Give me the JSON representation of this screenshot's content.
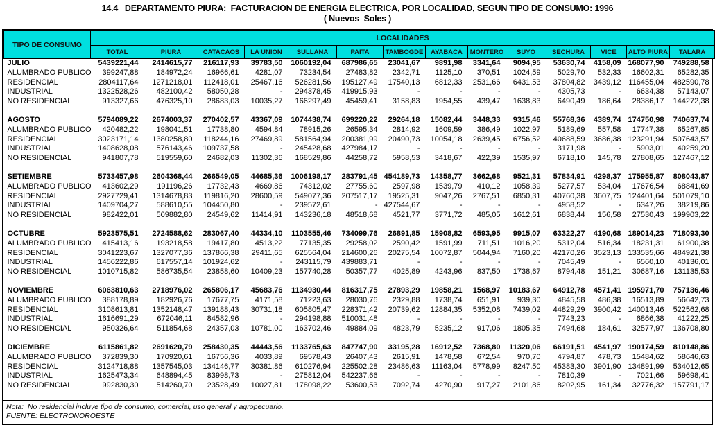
{
  "title": {
    "line1": "14.4   DEPARTAMENTO PIURA:  FACTURACION DE ENERGIA ELECTRICA, POR LOCALIDAD, SEGUN TIPO DE CONSUMO: 1996",
    "line2": "( Nuevos  Soles )"
  },
  "colors": {
    "header_bg": "#00DFDF",
    "header_text": "#111111"
  },
  "table": {
    "corner_header": "TIPO DE CONSUMO",
    "group_header": "LOCALIDADES",
    "columns": [
      "TOTAL",
      "PIURA",
      "CATACAOS",
      "LA UNION",
      "SULLANA",
      "PAITA",
      "TAMBOGDE",
      "AYABACA",
      "MONTERO",
      "SUYO",
      "SECHURA",
      "VICE",
      "ALTO PIURA",
      "TALARA"
    ],
    "months": [
      {
        "name": "JULIO",
        "totals": [
          "5439221,44",
          "2414615,77",
          "216117,93",
          "39783,50",
          "1060192,04",
          "687986,65",
          "23041,67",
          "9891,98",
          "3341,64",
          "9094,95",
          "53630,74",
          "4158,09",
          "168077,90",
          "749288,58"
        ],
        "categories": [
          {
            "label": "ALUMBRADO PUBLICO",
            "values": [
              "399247,88",
              "184972,24",
              "16966,61",
              "4281,07",
              "73234,54",
              "27483,82",
              "2342,71",
              "1125,10",
              "370,51",
              "1024,59",
              "5029,70",
              "532,33",
              "16602,31",
              "65282,35"
            ]
          },
          {
            "label": "RESIDENCIAL",
            "values": [
              "2804117,64",
              "1271218,01",
              "112418,01",
              "25467,16",
              "526281,56",
              "195127,49",
              "17540,13",
              "6812,33",
              "2531,66",
              "6431,53",
              "37804,82",
              "3439,12",
              "116455,04",
              "482590,78"
            ]
          },
          {
            "label": "INDUSTRIAL",
            "values": [
              "1322528,26",
              "482100,42",
              "58050,28",
              "-",
              "294378,45",
              "419915,93",
              "-",
              "-",
              "-",
              "-",
              "4305,73",
              "-",
              "6634,38",
              "57143,07"
            ]
          },
          {
            "label": "NO RESIDENCIAL",
            "values": [
              "913327,66",
              "476325,10",
              "28683,03",
              "10035,27",
              "166297,49",
              "45459,41",
              "3158,83",
              "1954,55",
              "439,47",
              "1638,83",
              "6490,49",
              "186,64",
              "28386,17",
              "144272,38"
            ]
          }
        ]
      },
      {
        "name": "AGOSTO",
        "totals": [
          "5794089,22",
          "2674003,37",
          "270402,57",
          "43367,09",
          "1074438,74",
          "699220,22",
          "29264,18",
          "15082,44",
          "3448,33",
          "9315,46",
          "55768,36",
          "4389,74",
          "174750,98",
          "740637,74"
        ],
        "categories": [
          {
            "label": "ALUMBRADO PUBLICO",
            "values": [
              "420482,22",
              "198041,51",
              "17738,80",
              "4594,84",
              "78915,26",
              "26595,34",
              "2814,92",
              "1609,59",
              "386,49",
              "1022,97",
              "5189,69",
              "557,58",
              "17747,38",
              "65267,85"
            ]
          },
          {
            "label": "RESIDENCIAL",
            "values": [
              "3023171,14",
              "1380258,80",
              "118244,16",
              "27469,89",
              "581564,94",
              "200381,99",
              "20490,73",
              "10054,18",
              "2639,45",
              "6756,52",
              "40688,59",
              "3686,38",
              "123291,94",
              "507643,57"
            ]
          },
          {
            "label": "INDUSTRIAL",
            "values": [
              "1408628,08",
              "576143,46",
              "109737,58",
              "-",
              "245428,68",
              "427984,17",
              "-",
              "-",
              "-",
              "-",
              "3171,98",
              "-",
              "5903,01",
              "40259,20"
            ]
          },
          {
            "label": "NO RESIDENCIAL",
            "values": [
              "941807,78",
              "519559,60",
              "24682,03",
              "11302,36",
              "168529,86",
              "44258,72",
              "5958,53",
              "3418,67",
              "422,39",
              "1535,97",
              "6718,10",
              "145,78",
              "27808,65",
              "127467,12"
            ]
          }
        ]
      },
      {
        "name": "SETIEMBRE",
        "totals": [
          "5733457,98",
          "2604368,44",
          "266549,05",
          "44685,36",
          "1006198,17",
          "283791,45",
          "454189,73",
          "14358,77",
          "3662,68",
          "9521,31",
          "57834,91",
          "4298,37",
          "175955,87",
          "808043,87"
        ],
        "categories": [
          {
            "label": "ALUMBRADO PUBLICO",
            "values": [
              "413602,29",
              "191196,26",
              "17732,43",
              "4669,86",
              "74312,02",
              "27755,60",
              "2597,98",
              "1539,79",
              "410,12",
              "1058,39",
              "5277,57",
              "534,04",
              "17676,54",
              "68841,69"
            ]
          },
          {
            "label": "RESIDENCIAL",
            "values": [
              "2927729,41",
              "1314678,83",
              "119816,20",
              "28600,59",
              "549077,36",
              "207517,17",
              "19525,31",
              "9047,26",
              "2767,51",
              "6850,31",
              "40760,38",
              "3607,75",
              "124401,64",
              "501079,10"
            ]
          },
          {
            "label": "INDUSTRIAL",
            "values": [
              "1409704,27",
              "588610,55",
              "104450,80",
              "-",
              "239572,61",
              "-",
              "427544,67",
              "-",
              "-",
              "-",
              "4958,52",
              "-",
              "6347,26",
              "38219,86"
            ]
          },
          {
            "label": "NO RESIDENCIAL",
            "values": [
              "982422,01",
              "509882,80",
              "24549,62",
              "11414,91",
              "143236,18",
              "48518,68",
              "4521,77",
              "3771,72",
              "485,05",
              "1612,61",
              "6838,44",
              "156,58",
              "27530,43",
              "199903,22"
            ]
          }
        ]
      },
      {
        "name": "OCTUBRE",
        "totals": [
          "5923575,51",
          "2724588,62",
          "283067,40",
          "44334,10",
          "1103555,46",
          "734099,76",
          "26891,85",
          "15908,82",
          "6593,95",
          "9915,07",
          "63322,27",
          "4190,68",
          "189014,23",
          "718093,30"
        ],
        "categories": [
          {
            "label": "ALUMBRADO PUBLICO",
            "values": [
              "415413,16",
              "193218,58",
              "19417,80",
              "4513,22",
              "77135,35",
              "29258,02",
              "2590,42",
              "1591,99",
              "711,51",
              "1016,20",
              "5312,04",
              "516,34",
              "18231,31",
              "61900,38"
            ]
          },
          {
            "label": "RESIDENCIAL",
            "values": [
              "3041223,67",
              "1327077,36",
              "137866,38",
              "29411,65",
              "625564,04",
              "214600,26",
              "20275,54",
              "10072,87",
              "5044,94",
              "7160,20",
              "42170,26",
              "3523,13",
              "133535,66",
              "484921,38"
            ]
          },
          {
            "label": "INDUSTRIAL",
            "values": [
              "1456222,86",
              "617557,14",
              "101924,62",
              "-",
              "243115,79",
              "439883,71",
              "-",
              "-",
              "-",
              "-",
              "7045,49",
              "-",
              "6560,10",
              "40136,01"
            ]
          },
          {
            "label": "NO RESIDENCIAL",
            "values": [
              "1010715,82",
              "586735,54",
              "23858,60",
              "10409,23",
              "157740,28",
              "50357,77",
              "4025,89",
              "4243,96",
              "837,50",
              "1738,67",
              "8794,48",
              "151,21",
              "30687,16",
              "131135,53"
            ]
          }
        ]
      },
      {
        "name": "NOVIEMBRE",
        "totals": [
          "6063810,63",
          "2718976,02",
          "265806,17",
          "45683,76",
          "1134930,44",
          "816317,75",
          "27893,29",
          "19858,21",
          "1568,97",
          "10183,67",
          "64912,78",
          "4571,41",
          "195971,70",
          "757136,46"
        ],
        "categories": [
          {
            "label": "ALUMBRADO PUBLICO",
            "values": [
              "388178,89",
              "182926,76",
              "17677,75",
              "4171,58",
              "71223,63",
              "28030,76",
              "2329,88",
              "1738,74",
              "651,91",
              "939,30",
              "4845,58",
              "486,38",
              "16513,89",
              "56642,73"
            ]
          },
          {
            "label": "RESIDENCIAL",
            "values": [
              "3108613,81",
              "1352148,47",
              "139188,43",
              "30731,18",
              "605805,47",
              "228371,42",
              "20739,62",
              "12884,35",
              "5352,08",
              "7439,02",
              "44829,29",
              "3900,42",
              "140013,46",
              "522562,68"
            ]
          },
          {
            "label": "INDUSTRIAL",
            "values": [
              "1616691,29",
              "672046,11",
              "84582,96",
              "-",
              "294198,88",
              "510031,48",
              "-",
              "-",
              "-",
              "-",
              "7743,23",
              "-",
              "6866,38",
              "41222,25"
            ]
          },
          {
            "label": "NO RESIDENCIAL",
            "values": [
              "950326,64",
              "511854,68",
              "24357,03",
              "10781,00",
              "163702,46",
              "49884,09",
              "4823,79",
              "5235,12",
              "917,06",
              "1805,35",
              "7494,68",
              "184,61",
              "32577,97",
              "136708,80"
            ]
          }
        ]
      },
      {
        "name": "DICIEMBRE",
        "totals": [
          "6115861,82",
          "2691620,79",
          "258430,35",
          "44443,56",
          "1133765,63",
          "847747,90",
          "33195,28",
          "16912,52",
          "7368,80",
          "11320,06",
          "66191,51",
          "4541,97",
          "190174,59",
          "810148,86"
        ],
        "categories": [
          {
            "label": "ALUMBRADO PUBLICO",
            "values": [
              "372839,30",
              "170920,61",
              "16756,36",
              "4033,89",
              "69578,43",
              "26407,43",
              "2615,91",
              "1478,58",
              "672,54",
              "970,70",
              "4794,87",
              "478,73",
              "15484,62",
              "58646,63"
            ]
          },
          {
            "label": "RESIDENCIAL",
            "values": [
              "3124718,88",
              "1357545,03",
              "134146,77",
              "30381,86",
              "610276,94",
              "225502,28",
              "23486,63",
              "11163,04",
              "5778,99",
              "8247,50",
              "45383,30",
              "3901,90",
              "134891,99",
              "534012,65"
            ]
          },
          {
            "label": "INDUSTRIAL",
            "values": [
              "1625473,34",
              "648894,45",
              "83998,73",
              "-",
              "275812,04",
              "542237,66",
              "-",
              "-",
              "-",
              "-",
              "7810,39",
              "-",
              "7021,66",
              "59698,41"
            ]
          },
          {
            "label": "NO RESIDENCIAL",
            "values": [
              "992830,30",
              "514260,70",
              "23528,49",
              "10027,81",
              "178098,22",
              "53600,53",
              "7092,74",
              "4270,90",
              "917,27",
              "2101,86",
              "8202,95",
              "161,34",
              "32776,32",
              "157791,17"
            ]
          }
        ]
      }
    ]
  },
  "footer": {
    "note": "Nota:  No residencial incluye tipo de consumo, comercial, uso general y agropecuario.",
    "source": "FUENTE: ELECTRONOROESTE"
  }
}
